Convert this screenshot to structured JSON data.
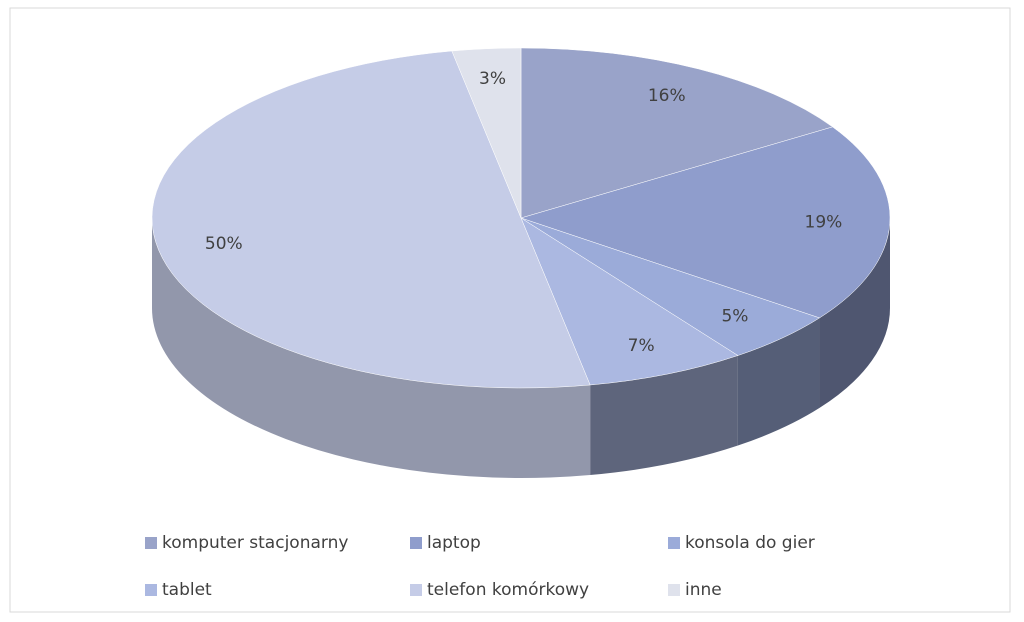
{
  "chart_data": {
    "type": "pie",
    "categories": [
      "komputer stacjonarny",
      "laptop",
      "konsola do gier",
      "tablet",
      "telefon komórkowy",
      "inne"
    ],
    "values": [
      16,
      19,
      5,
      7,
      50,
      3
    ],
    "value_labels": [
      "16%",
      "19%",
      "5%",
      "7%",
      "50%",
      "3%"
    ],
    "colors": [
      "#99a3c9",
      "#8f9dcc",
      "#9babd9",
      "#abb8e1",
      "#c5cce7",
      "#dfe2ec"
    ],
    "three_d": true,
    "legend": "bottom"
  }
}
